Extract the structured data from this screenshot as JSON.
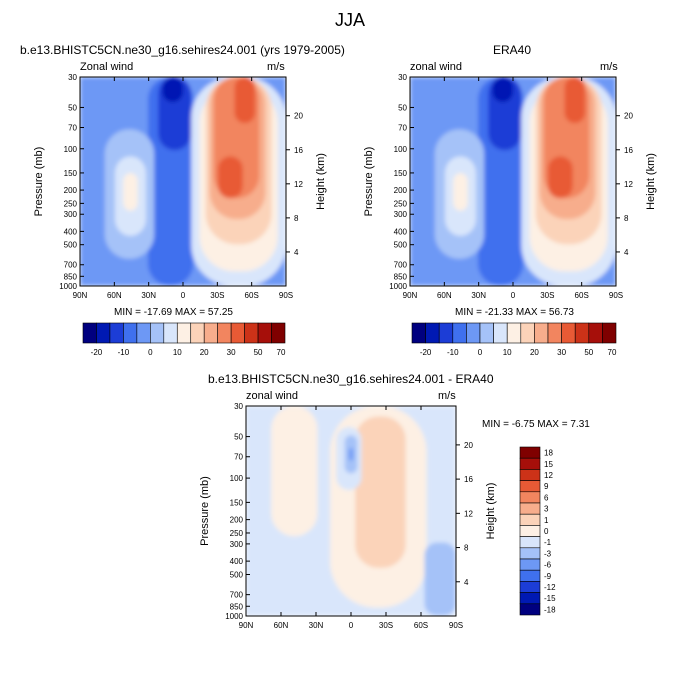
{
  "page_title": "JJA",
  "colors": {
    "negative_dark": "#00007f",
    "negative_mid": "#1c51e0",
    "negative_light": "#c9daf6",
    "positive_light": "#fbe3d1",
    "positive_mid": "#ef6d42",
    "positive_dark": "#7f0000"
  },
  "chart_data": [
    {
      "type": "heatmap",
      "title": "b.e13.BHISTC5CN.ne30_g16.sehires24.001 (yrs 1979-2005)",
      "left_string": "Zonal wind",
      "right_string": "m/s",
      "stats": "MIN = -17.69  MAX =  57.25",
      "xlabel": "",
      "ylabel": "Pressure (mb)",
      "right_ylabel": "Height (km)",
      "x_ticks": [
        "90N",
        "60N",
        "30N",
        "0",
        "30S",
        "60S",
        "90S"
      ],
      "y_ticks": [
        "30",
        "50",
        "70",
        "100",
        "150",
        "200",
        "250",
        "300",
        "400",
        "500",
        "700",
        "850",
        "1000"
      ],
      "right_ticks": [
        "20",
        "16",
        "12",
        "8",
        "4"
      ],
      "colorbar_labels": [
        "-20",
        "-10",
        "0",
        "10",
        "20",
        "30",
        "50",
        "70"
      ],
      "colorbar_colors": [
        "#00007f",
        "#0019b3",
        "#1c3dd6",
        "#3f70ee",
        "#6d98f5",
        "#a5c2f8",
        "#d9e6fb",
        "#fdf0e4",
        "#fbd3b9",
        "#f7ad8c",
        "#f2855f",
        "#e85a35",
        "#cc3218",
        "#a60f0a",
        "#7f0000"
      ]
    },
    {
      "type": "heatmap",
      "title": "ERA40",
      "left_string": "zonal wind",
      "right_string": "m/s",
      "stats": "MIN = -21.33  MAX =  56.73",
      "xlabel": "",
      "ylabel": "Pressure (mb)",
      "right_ylabel": "Height (km)",
      "x_ticks": [
        "90N",
        "60N",
        "30N",
        "0",
        "30S",
        "60S",
        "90S"
      ],
      "y_ticks": [
        "30",
        "50",
        "70",
        "100",
        "150",
        "200",
        "250",
        "300",
        "400",
        "500",
        "700",
        "850",
        "1000"
      ],
      "right_ticks": [
        "20",
        "16",
        "12",
        "8",
        "4"
      ],
      "colorbar_labels": [
        "-20",
        "-10",
        "0",
        "10",
        "20",
        "30",
        "50",
        "70"
      ],
      "colorbar_colors": [
        "#00007f",
        "#0019b3",
        "#1c3dd6",
        "#3f70ee",
        "#6d98f5",
        "#a5c2f8",
        "#d9e6fb",
        "#fdf0e4",
        "#fbd3b9",
        "#f7ad8c",
        "#f2855f",
        "#e85a35",
        "#cc3218",
        "#a60f0a",
        "#7f0000"
      ]
    },
    {
      "type": "heatmap",
      "title": "b.e13.BHISTC5CN.ne30_g16.sehires24.001 - ERA40",
      "left_string": "zonal wind",
      "right_string": "m/s",
      "stats": "MIN = -6.75  MAX =  7.31",
      "xlabel": "",
      "ylabel": "Pressure (mb)",
      "right_ylabel": "Height (km)",
      "x_ticks": [
        "90N",
        "60N",
        "30N",
        "0",
        "30S",
        "60S",
        "90S"
      ],
      "y_ticks": [
        "30",
        "50",
        "70",
        "100",
        "150",
        "200",
        "250",
        "300",
        "400",
        "500",
        "700",
        "850",
        "1000"
      ],
      "right_ticks": [
        "20",
        "16",
        "12",
        "8",
        "4"
      ],
      "colorbar_labels": [
        "18",
        "15",
        "12",
        "9",
        "6",
        "3",
        "1",
        "0",
        "-1",
        "-3",
        "-6",
        "-9",
        "-12",
        "-15",
        "-18"
      ],
      "colorbar_colors": [
        "#7f0000",
        "#a60f0a",
        "#cc3218",
        "#e85a35",
        "#f2855f",
        "#f7ad8c",
        "#fbd3b9",
        "#fdf0e4",
        "#d9e6fb",
        "#a5c2f8",
        "#6d98f5",
        "#3f70ee",
        "#1c3dd6",
        "#0019b3",
        "#00007f"
      ]
    }
  ]
}
